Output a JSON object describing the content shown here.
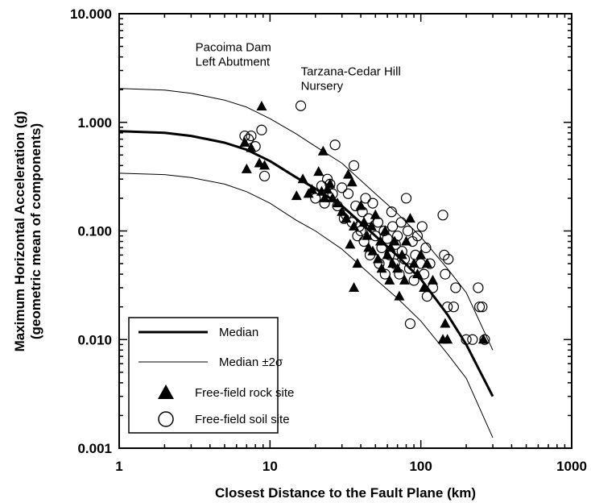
{
  "chart_data": {
    "type": "scatter",
    "xscale": "log",
    "yscale": "log",
    "xlim": [
      1,
      1000
    ],
    "ylim": [
      0.001,
      10
    ],
    "xlabel": "Closest Distance to the Fault Plane (km)",
    "ylabel": [
      "Maximum Horizontal Acceleration (g)",
      "(geometric mean of components)"
    ],
    "x_ticks": [
      {
        "value": 1,
        "label": "1"
      },
      {
        "value": 10,
        "label": "10"
      },
      {
        "value": 100,
        "label": "100"
      },
      {
        "value": 1000,
        "label": "1000"
      }
    ],
    "y_ticks": [
      {
        "value": 10,
        "label": "10.000"
      },
      {
        "value": 1,
        "label": "1.000"
      },
      {
        "value": 0.1,
        "label": "0.100"
      },
      {
        "value": 0.01,
        "label": "0.010"
      },
      {
        "value": 0.001,
        "label": "0.001"
      }
    ],
    "grid": false,
    "legend_position": "bottom-left",
    "annotations": [
      {
        "lines": [
          "Pacoima Dam",
          "Left Abutment"
        ],
        "x": 3.2,
        "y": 4.5
      },
      {
        "lines": [
          "Tarzana-Cedar Hill",
          "Nursery"
        ],
        "x": 16,
        "y": 2.7
      }
    ],
    "series": [
      {
        "name": "Median",
        "kind": "line",
        "line_weight": "thick",
        "x": [
          1,
          2,
          3,
          5,
          7,
          10,
          15,
          20,
          30,
          50,
          70,
          100,
          150,
          200,
          300
        ],
        "y": [
          0.83,
          0.8,
          0.75,
          0.65,
          0.56,
          0.44,
          0.31,
          0.245,
          0.17,
          0.09,
          0.059,
          0.036,
          0.017,
          0.009,
          0.003
        ]
      },
      {
        "name": "Median ±2σ",
        "kind": "line",
        "line_weight": "thin",
        "x": [
          1,
          2,
          3,
          5,
          7,
          10,
          15,
          20,
          30,
          50,
          70,
          100,
          150,
          200,
          300
        ],
        "y": [
          2.05,
          1.98,
          1.85,
          1.6,
          1.38,
          1.08,
          0.78,
          0.6,
          0.42,
          0.22,
          0.145,
          0.088,
          0.045,
          0.027,
          0.008
        ]
      },
      {
        "name": "",
        "kind": "line",
        "line_weight": "thin",
        "x": [
          1,
          2,
          3,
          5,
          7,
          10,
          15,
          20,
          30,
          50,
          70,
          100,
          150,
          200,
          300
        ],
        "y": [
          0.34,
          0.33,
          0.31,
          0.27,
          0.23,
          0.18,
          0.125,
          0.1,
          0.068,
          0.036,
          0.024,
          0.0148,
          0.0074,
          0.0044,
          0.00125
        ]
      },
      {
        "name": "Free-field rock site",
        "kind": "markers",
        "marker": "triangle",
        "points": [
          [
            6.8,
            0.65
          ],
          [
            7,
            0.37
          ],
          [
            7.5,
            0.58
          ],
          [
            8.5,
            0.42
          ],
          [
            8.8,
            1.4
          ],
          [
            9.2,
            0.4
          ],
          [
            15,
            0.21
          ],
          [
            16.5,
            0.3
          ],
          [
            18,
            0.22
          ],
          [
            19,
            0.24
          ],
          [
            21,
            0.35
          ],
          [
            22,
            0.23
          ],
          [
            22.5,
            0.54
          ],
          [
            23,
            0.2
          ],
          [
            24,
            0.24
          ],
          [
            25,
            0.27
          ],
          [
            26,
            0.2
          ],
          [
            28,
            0.18
          ],
          [
            30,
            0.15
          ],
          [
            32,
            0.13
          ],
          [
            33,
            0.33
          ],
          [
            34,
            0.075
          ],
          [
            35,
            0.28
          ],
          [
            36,
            0.11
          ],
          [
            36,
            0.03
          ],
          [
            38,
            0.05
          ],
          [
            40,
            0.17
          ],
          [
            42,
            0.12
          ],
          [
            44,
            0.09
          ],
          [
            45,
            0.07
          ],
          [
            47,
            0.11
          ],
          [
            48,
            0.065
          ],
          [
            50,
            0.14
          ],
          [
            52,
            0.055
          ],
          [
            54,
            0.08
          ],
          [
            55,
            0.045
          ],
          [
            58,
            0.1
          ],
          [
            60,
            0.06
          ],
          [
            62,
            0.035
          ],
          [
            63,
            0.07
          ],
          [
            65,
            0.05
          ],
          [
            67,
            0.08
          ],
          [
            70,
            0.045
          ],
          [
            72,
            0.025
          ],
          [
            75,
            0.06
          ],
          [
            78,
            0.035
          ],
          [
            80,
            0.08
          ],
          [
            85,
            0.13
          ],
          [
            90,
            0.05
          ],
          [
            95,
            0.04
          ],
          [
            100,
            0.06
          ],
          [
            105,
            0.03
          ],
          [
            110,
            0.05
          ],
          [
            120,
            0.035
          ],
          [
            140,
            0.01
          ],
          [
            145,
            0.014
          ],
          [
            150,
            0.01
          ],
          [
            260,
            0.01
          ]
        ]
      },
      {
        "name": "Free-field soil site",
        "kind": "markers",
        "marker": "circle",
        "points": [
          [
            6.8,
            0.75
          ],
          [
            7.2,
            0.7
          ],
          [
            7.5,
            0.75
          ],
          [
            8,
            0.6
          ],
          [
            8.8,
            0.85
          ],
          [
            9.2,
            0.32
          ],
          [
            16,
            1.42
          ],
          [
            20,
            0.2
          ],
          [
            22,
            0.26
          ],
          [
            23,
            0.18
          ],
          [
            24,
            0.3
          ],
          [
            25,
            0.27
          ],
          [
            26,
            0.22
          ],
          [
            27,
            0.62
          ],
          [
            28,
            0.17
          ],
          [
            30,
            0.25
          ],
          [
            31,
            0.13
          ],
          [
            32,
            0.14
          ],
          [
            33,
            0.22
          ],
          [
            35,
            0.12
          ],
          [
            36,
            0.4
          ],
          [
            37,
            0.17
          ],
          [
            38,
            0.09
          ],
          [
            39,
            0.11
          ],
          [
            40,
            0.1
          ],
          [
            41,
            0.15
          ],
          [
            42,
            0.08
          ],
          [
            43,
            0.2
          ],
          [
            45,
            0.13
          ],
          [
            46,
            0.06
          ],
          [
            48,
            0.18
          ],
          [
            50,
            0.09
          ],
          [
            52,
            0.12
          ],
          [
            53,
            0.05
          ],
          [
            55,
            0.07
          ],
          [
            57,
            0.1
          ],
          [
            58,
            0.04
          ],
          [
            60,
            0.085
          ],
          [
            62,
            0.06
          ],
          [
            64,
            0.15
          ],
          [
            65,
            0.11
          ],
          [
            67,
            0.05
          ],
          [
            68,
            0.075
          ],
          [
            70,
            0.09
          ],
          [
            72,
            0.04
          ],
          [
            74,
            0.12
          ],
          [
            75,
            0.065
          ],
          [
            78,
            0.055
          ],
          [
            80,
            0.2
          ],
          [
            82,
            0.1
          ],
          [
            84,
            0.045
          ],
          [
            85,
            0.014
          ],
          [
            88,
            0.08
          ],
          [
            90,
            0.035
          ],
          [
            92,
            0.06
          ],
          [
            95,
            0.09
          ],
          [
            100,
            0.05
          ],
          [
            102,
            0.11
          ],
          [
            105,
            0.04
          ],
          [
            108,
            0.07
          ],
          [
            110,
            0.025
          ],
          [
            115,
            0.05
          ],
          [
            120,
            0.03
          ],
          [
            140,
            0.14
          ],
          [
            143,
            0.06
          ],
          [
            145,
            0.04
          ],
          [
            150,
            0.02
          ],
          [
            152,
            0.055
          ],
          [
            165,
            0.02
          ],
          [
            170,
            0.03
          ],
          [
            200,
            0.01
          ],
          [
            220,
            0.01
          ],
          [
            240,
            0.03
          ],
          [
            245,
            0.02
          ],
          [
            255,
            0.02
          ],
          [
            265,
            0.01
          ]
        ]
      }
    ]
  }
}
